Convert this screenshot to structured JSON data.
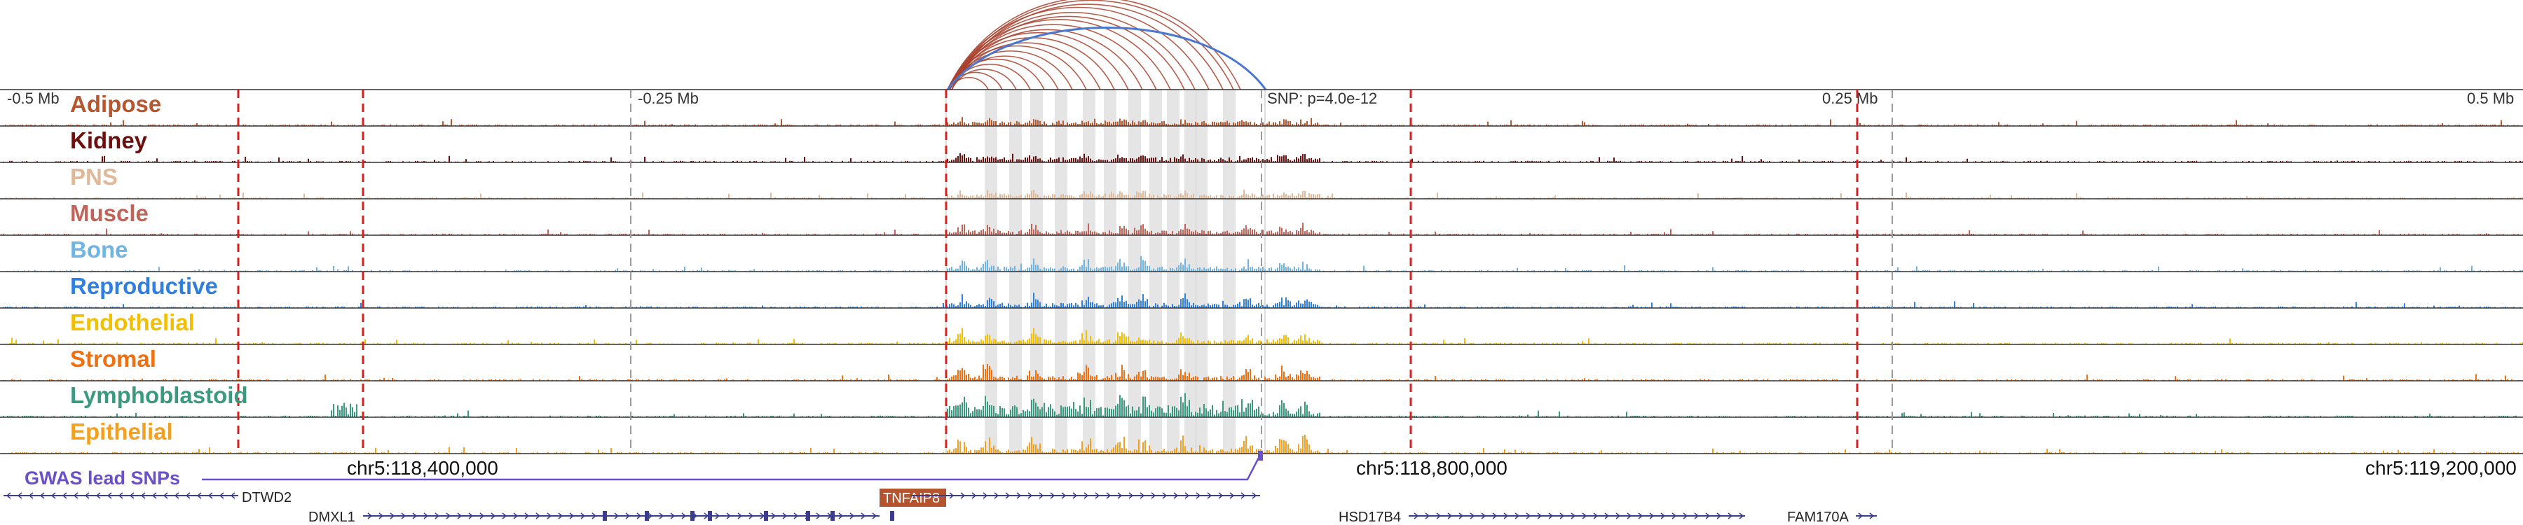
{
  "axis": {
    "ticks": [
      "-0.5 Mb",
      "-0.25 Mb",
      "SNP: p=4.0e-12",
      "0.25 Mb",
      "0.5 Mb"
    ]
  },
  "tracks": [
    {
      "label": "Adipose",
      "color": "#b8562d"
    },
    {
      "label": "Kidney",
      "color": "#6b0f0f"
    },
    {
      "label": "PNS",
      "color": "#e0b99a"
    },
    {
      "label": "Muscle",
      "color": "#c0645a"
    },
    {
      "label": "Bone",
      "color": "#6fb4e2"
    },
    {
      "label": "Reproductive",
      "color": "#2f7fe0"
    },
    {
      "label": "Endothelial",
      "color": "#f2c000"
    },
    {
      "label": "Stromal",
      "color": "#f07010"
    },
    {
      "label": "Lymphoblastoid",
      "color": "#3a9a80"
    },
    {
      "label": "Epithelial",
      "color": "#f2a020"
    }
  ],
  "coordinates": [
    "chr5:118,400,000",
    "chr5:118,800,000",
    "chr5:119,200,000"
  ],
  "gwas": {
    "label": "GWAS lead SNPs",
    "color": "#6a50c8"
  },
  "genes": [
    {
      "name": "DTWD2",
      "strand": "-"
    },
    {
      "name": "DMXL1",
      "strand": "+"
    },
    {
      "name": "TNFAIP8",
      "strand": "+",
      "highlight_color": "#b5532e"
    },
    {
      "name": "HSD17B4",
      "strand": "+"
    },
    {
      "name": "FAM170A",
      "strand": "+"
    }
  ],
  "colors": {
    "arc_red": "#a8402a",
    "arc_blue": "#4a78d0",
    "dashed_red": "#d42020",
    "dashed_gray": "#9a9a9a",
    "gene_line": "#3b3b8f"
  }
}
